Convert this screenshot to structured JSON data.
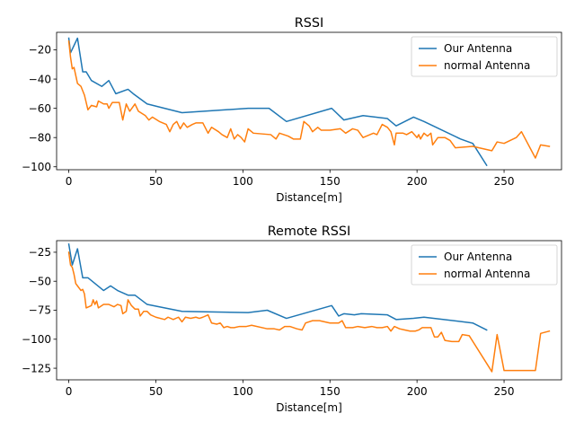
{
  "colors": {
    "series_0": "#1f77b4",
    "series_1": "#ff7f0e"
  },
  "chart_data": [
    {
      "type": "line",
      "title": "RSSI",
      "xlabel": "Distance[m]",
      "ylabel": "",
      "xlim": [
        -7,
        283
      ],
      "ylim": [
        -102,
        -8
      ],
      "xticks": [
        0,
        50,
        100,
        150,
        200,
        250
      ],
      "yticks": [
        -100,
        -80,
        -60,
        -40,
        -20
      ],
      "legend_position": "top-right",
      "grid": false,
      "series": [
        {
          "name": "Our Antenna",
          "color": "#1f77b4",
          "points": [
            [
              0,
              -12
            ],
            [
              1,
              -22
            ],
            [
              5,
              -12
            ],
            [
              8,
              -35
            ],
            [
              10,
              -35
            ],
            [
              13,
              -41
            ],
            [
              19,
              -45
            ],
            [
              23,
              -41
            ],
            [
              27,
              -50
            ],
            [
              34,
              -47
            ],
            [
              37,
              -50
            ],
            [
              45,
              -57
            ],
            [
              65,
              -63
            ],
            [
              103,
              -60
            ],
            [
              115,
              -60
            ],
            [
              125,
              -69
            ],
            [
              151,
              -60
            ],
            [
              158,
              -68
            ],
            [
              169,
              -65
            ],
            [
              183,
              -67
            ],
            [
              188,
              -72
            ],
            [
              198,
              -66
            ],
            [
              204,
              -69
            ],
            [
              225,
              -81
            ],
            [
              232,
              -84
            ],
            [
              240,
              -99
            ]
          ]
        },
        {
          "name": "normal Antenna",
          "color": "#ff7f0e",
          "points": [
            [
              0,
              -14
            ],
            [
              1,
              -25
            ],
            [
              2,
              -33
            ],
            [
              3,
              -32
            ],
            [
              5,
              -43
            ],
            [
              7,
              -45
            ],
            [
              9,
              -51
            ],
            [
              11,
              -61
            ],
            [
              13,
              -58
            ],
            [
              16,
              -59
            ],
            [
              17,
              -55
            ],
            [
              20,
              -57
            ],
            [
              22,
              -57
            ],
            [
              23,
              -60
            ],
            [
              25,
              -56
            ],
            [
              29,
              -56
            ],
            [
              31,
              -68
            ],
            [
              33,
              -57
            ],
            [
              35,
              -62
            ],
            [
              38,
              -57
            ],
            [
              40,
              -62
            ],
            [
              44,
              -65
            ],
            [
              46,
              -68
            ],
            [
              48,
              -66
            ],
            [
              52,
              -69
            ],
            [
              56,
              -71
            ],
            [
              58,
              -76
            ],
            [
              60,
              -71
            ],
            [
              62,
              -69
            ],
            [
              64,
              -74
            ],
            [
              66,
              -70
            ],
            [
              68,
              -73
            ],
            [
              71,
              -71
            ],
            [
              73,
              -70
            ],
            [
              77,
              -70
            ],
            [
              80,
              -77
            ],
            [
              82,
              -73
            ],
            [
              86,
              -76
            ],
            [
              88,
              -78
            ],
            [
              91,
              -80
            ],
            [
              93,
              -74
            ],
            [
              95,
              -81
            ],
            [
              97,
              -78
            ],
            [
              99,
              -80
            ],
            [
              101,
              -83
            ],
            [
              103,
              -74
            ],
            [
              106,
              -77
            ],
            [
              116,
              -78
            ],
            [
              119,
              -81
            ],
            [
              121,
              -77
            ],
            [
              126,
              -79
            ],
            [
              129,
              -81
            ],
            [
              133,
              -81
            ],
            [
              135,
              -69
            ],
            [
              138,
              -72
            ],
            [
              140,
              -76
            ],
            [
              143,
              -73
            ],
            [
              145,
              -75
            ],
            [
              150,
              -75
            ],
            [
              156,
              -74
            ],
            [
              159,
              -77
            ],
            [
              163,
              -74
            ],
            [
              166,
              -75
            ],
            [
              169,
              -80
            ],
            [
              175,
              -77
            ],
            [
              177,
              -78
            ],
            [
              180,
              -71
            ],
            [
              183,
              -73
            ],
            [
              185,
              -76
            ],
            [
              187,
              -85
            ],
            [
              188,
              -77
            ],
            [
              192,
              -77
            ],
            [
              194,
              -78
            ],
            [
              197,
              -76
            ],
            [
              200,
              -80
            ],
            [
              201,
              -78
            ],
            [
              202,
              -81
            ],
            [
              204,
              -77
            ],
            [
              206,
              -79
            ],
            [
              208,
              -77
            ],
            [
              209,
              -85
            ],
            [
              212,
              -80
            ],
            [
              216,
              -80
            ],
            [
              219,
              -82
            ],
            [
              222,
              -87
            ],
            [
              232,
              -86
            ],
            [
              243,
              -89
            ],
            [
              246,
              -83
            ],
            [
              250,
              -84
            ],
            [
              257,
              -80
            ],
            [
              260,
              -76
            ],
            [
              268,
              -94
            ],
            [
              271,
              -85
            ],
            [
              276,
              -86
            ]
          ]
        }
      ]
    },
    {
      "type": "line",
      "title": "Remote RSSI",
      "xlabel": "Distance[m]",
      "ylabel": "",
      "xlim": [
        -7,
        283
      ],
      "ylim": [
        -135,
        -15
      ],
      "xticks": [
        0,
        50,
        100,
        150,
        200,
        250
      ],
      "yticks": [
        -125,
        -100,
        -75,
        -50,
        -25
      ],
      "legend_position": "top-right",
      "grid": false,
      "series": [
        {
          "name": "Our Antenna",
          "color": "#1f77b4",
          "points": [
            [
              0,
              -18
            ],
            [
              2,
              -36
            ],
            [
              5,
              -22
            ],
            [
              8,
              -47
            ],
            [
              11,
              -47
            ],
            [
              20,
              -58
            ],
            [
              24,
              -54
            ],
            [
              28,
              -58
            ],
            [
              34,
              -62
            ],
            [
              38,
              -62
            ],
            [
              45,
              -70
            ],
            [
              65,
              -76
            ],
            [
              103,
              -77
            ],
            [
              114,
              -75
            ],
            [
              125,
              -82
            ],
            [
              151,
              -71
            ],
            [
              155,
              -80
            ],
            [
              158,
              -78
            ],
            [
              164,
              -79
            ],
            [
              168,
              -78
            ],
            [
              183,
              -79
            ],
            [
              188,
              -83
            ],
            [
              198,
              -82
            ],
            [
              204,
              -81
            ],
            [
              232,
              -86
            ],
            [
              240,
              -92
            ]
          ]
        },
        {
          "name": "normal Antenna",
          "color": "#ff7f0e",
          "points": [
            [
              0,
              -25
            ],
            [
              1,
              -36
            ],
            [
              2,
              -38
            ],
            [
              3,
              -44
            ],
            [
              4,
              -52
            ],
            [
              5,
              -54
            ],
            [
              7,
              -58
            ],
            [
              8,
              -57
            ],
            [
              9,
              -61
            ],
            [
              10,
              -73
            ],
            [
              13,
              -71
            ],
            [
              14,
              -66
            ],
            [
              15,
              -70
            ],
            [
              16,
              -67
            ],
            [
              17,
              -73
            ],
            [
              20,
              -70
            ],
            [
              23,
              -70
            ],
            [
              26,
              -72
            ],
            [
              28,
              -70
            ],
            [
              30,
              -71
            ],
            [
              31,
              -78
            ],
            [
              33,
              -76
            ],
            [
              34,
              -66
            ],
            [
              36,
              -71
            ],
            [
              38,
              -74
            ],
            [
              40,
              -74
            ],
            [
              41,
              -80
            ],
            [
              43,
              -76
            ],
            [
              45,
              -76
            ],
            [
              47,
              -79
            ],
            [
              50,
              -81
            ],
            [
              55,
              -83
            ],
            [
              57,
              -81
            ],
            [
              60,
              -83
            ],
            [
              63,
              -81
            ],
            [
              65,
              -85
            ],
            [
              67,
              -81
            ],
            [
              70,
              -82
            ],
            [
              73,
              -81
            ],
            [
              75,
              -82
            ],
            [
              77,
              -81
            ],
            [
              80,
              -79
            ],
            [
              82,
              -86
            ],
            [
              85,
              -87
            ],
            [
              87,
              -86
            ],
            [
              89,
              -90
            ],
            [
              91,
              -89
            ],
            [
              93,
              -90
            ],
            [
              95,
              -90
            ],
            [
              98,
              -89
            ],
            [
              102,
              -89
            ],
            [
              105,
              -88
            ],
            [
              114,
              -91
            ],
            [
              118,
              -91
            ],
            [
              121,
              -92
            ],
            [
              124,
              -89
            ],
            [
              127,
              -89
            ],
            [
              131,
              -91
            ],
            [
              134,
              -92
            ],
            [
              136,
              -86
            ],
            [
              140,
              -84
            ],
            [
              144,
              -84
            ],
            [
              150,
              -86
            ],
            [
              155,
              -86
            ],
            [
              157,
              -84
            ],
            [
              159,
              -90
            ],
            [
              163,
              -90
            ],
            [
              166,
              -89
            ],
            [
              170,
              -90
            ],
            [
              174,
              -89
            ],
            [
              177,
              -90
            ],
            [
              180,
              -90
            ],
            [
              183,
              -89
            ],
            [
              185,
              -93
            ],
            [
              187,
              -89
            ],
            [
              190,
              -91
            ],
            [
              193,
              -92
            ],
            [
              196,
              -93
            ],
            [
              199,
              -93
            ],
            [
              201,
              -92
            ],
            [
              203,
              -90
            ],
            [
              208,
              -90
            ],
            [
              210,
              -98
            ],
            [
              212,
              -98
            ],
            [
              214,
              -94
            ],
            [
              216,
              -101
            ],
            [
              220,
              -102
            ],
            [
              224,
              -102
            ],
            [
              226,
              -96
            ],
            [
              230,
              -97
            ],
            [
              243,
              -128
            ],
            [
              246,
              -96
            ],
            [
              250,
              -127
            ],
            [
              260,
              -127
            ],
            [
              268,
              -127
            ],
            [
              271,
              -95
            ],
            [
              276,
              -93
            ]
          ]
        }
      ]
    }
  ]
}
